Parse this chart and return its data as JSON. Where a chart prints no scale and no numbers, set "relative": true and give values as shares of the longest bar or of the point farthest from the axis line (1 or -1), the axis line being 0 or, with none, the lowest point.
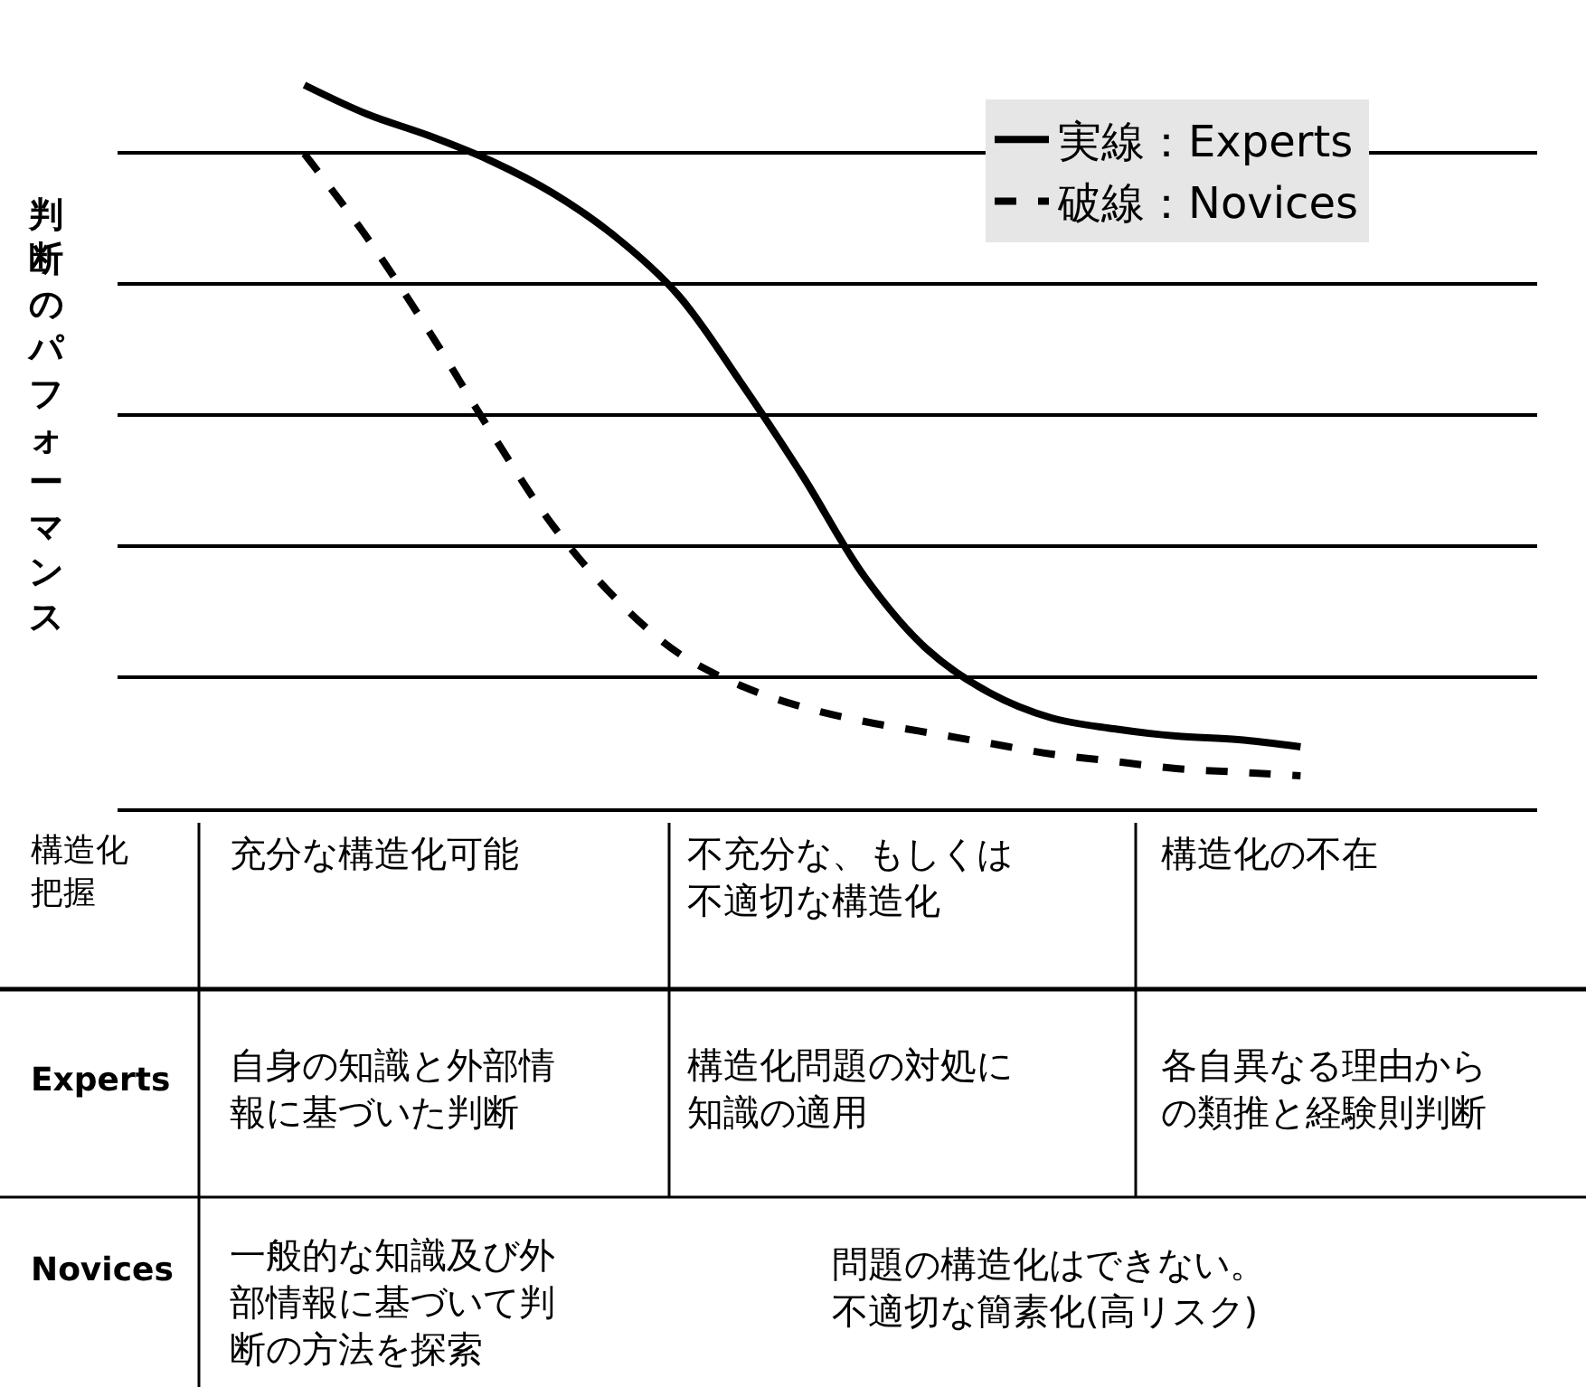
{
  "chart_data": {
    "type": "line",
    "relative": true,
    "ylabel": "判断のパフォーマンス",
    "grid": "y",
    "legend": "top right",
    "marker": "none",
    "categories": [
      null,
      null,
      null,
      null,
      null,
      null,
      null,
      null,
      null,
      null,
      null,
      null,
      null,
      null,
      null,
      null,
      null
    ],
    "series": [
      {
        "name": "実線：Experts",
        "color": "#000000",
        "line_style": "solid",
        "values": [
          1.0,
          0.96,
          0.93,
          0.895,
          0.85,
          0.79,
          0.71,
          0.59,
          0.46,
          0.32,
          0.22,
          0.16,
          0.125,
          0.11,
          0.1,
          0.095,
          0.085
        ]
      },
      {
        "name": "破線：Novices",
        "color": "#000000",
        "line_style": "dashed",
        "values": [
          0.905,
          0.79,
          0.66,
          0.52,
          0.39,
          0.29,
          0.215,
          0.17,
          0.14,
          0.12,
          0.105,
          0.09,
          0.075,
          0.065,
          0.055,
          0.05,
          0.045
        ]
      }
    ],
    "annotations": [
      "構造化把握",
      "充分な構造化可能",
      "不充分な、もしくは不適切な構造化",
      "構造化の不在",
      "Experts",
      "自身の知識と外部情報に基づいた判断",
      "構造化問題の対処に知識の適用",
      "各自異なる理由からの類推と経験則判断",
      "Novices",
      "一般的な知識及び外部情報に基づいて判断の方法を探索",
      "問題の構造化はできない。不適切な簡素化(高リスク)"
    ]
  }
}
